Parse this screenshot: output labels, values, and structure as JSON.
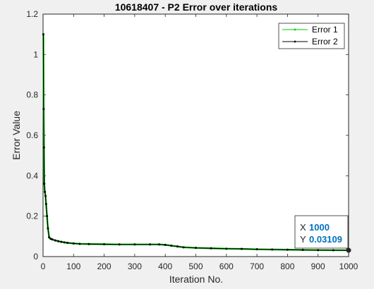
{
  "chart_data": {
    "type": "line",
    "title": "10618407 - P2 Error over iterations",
    "xlabel": "Iteration No.",
    "ylabel": "Error Value",
    "xlim": [
      0,
      1000
    ],
    "ylim": [
      0,
      1.2
    ],
    "xticks": [
      0,
      100,
      200,
      300,
      400,
      500,
      600,
      700,
      800,
      900,
      1000
    ],
    "yticks": [
      0,
      0.2,
      0.4,
      0.6,
      0.8,
      1,
      1.2
    ],
    "xtick_labels": [
      "0",
      "100",
      "200",
      "300",
      "400",
      "500",
      "600",
      "700",
      "800",
      "900",
      "1000"
    ],
    "ytick_labels": [
      "0",
      "0.2",
      "0.4",
      "0.6",
      "0.8",
      "1",
      "1.2"
    ],
    "grid": false,
    "legend_position": "top-right",
    "series": [
      {
        "name": "Error 1",
        "color": "#00cc00",
        "x": [
          1,
          2,
          3,
          4,
          6,
          8,
          10,
          13,
          16,
          20,
          25,
          30,
          40,
          50,
          60,
          70,
          80,
          100,
          120,
          150,
          200,
          250,
          300,
          350,
          380,
          400,
          420,
          440,
          460,
          500,
          550,
          600,
          650,
          700,
          750,
          800,
          850,
          900,
          950,
          1000
        ],
        "y": [
          1.1,
          0.73,
          0.54,
          0.36,
          0.32,
          0.3,
          0.26,
          0.2,
          0.14,
          0.095,
          0.088,
          0.085,
          0.08,
          0.076,
          0.073,
          0.07,
          0.068,
          0.065,
          0.063,
          0.062,
          0.061,
          0.06,
          0.06,
          0.06,
          0.06,
          0.058,
          0.054,
          0.05,
          0.046,
          0.043,
          0.041,
          0.039,
          0.038,
          0.036,
          0.035,
          0.034,
          0.033,
          0.032,
          0.0315,
          0.03109
        ]
      },
      {
        "name": "Error 2",
        "color": "#000000",
        "x": [
          1,
          2,
          3,
          4,
          6,
          8,
          10,
          13,
          16,
          20,
          25,
          30,
          40,
          50,
          60,
          70,
          80,
          100,
          120,
          150,
          200,
          250,
          300,
          350,
          380,
          400,
          420,
          440,
          460,
          500,
          550,
          600,
          650,
          700,
          750,
          800,
          850,
          900,
          950,
          1000
        ],
        "y": [
          1.1,
          0.73,
          0.54,
          0.36,
          0.32,
          0.3,
          0.26,
          0.2,
          0.14,
          0.095,
          0.088,
          0.085,
          0.08,
          0.076,
          0.073,
          0.07,
          0.068,
          0.065,
          0.063,
          0.062,
          0.061,
          0.06,
          0.06,
          0.06,
          0.06,
          0.058,
          0.054,
          0.05,
          0.046,
          0.043,
          0.041,
          0.039,
          0.038,
          0.036,
          0.035,
          0.034,
          0.033,
          0.032,
          0.0315,
          0.03109
        ]
      }
    ],
    "datatip": {
      "x_label": "X",
      "x_value": "1000",
      "y_label": "Y",
      "y_value": "0.03109",
      "point": [
        1000,
        0.03109
      ]
    }
  },
  "colors": {
    "figure_background": "#f0f0f0",
    "axes_background": "#ffffff",
    "datatip_value": "#0072bd"
  }
}
